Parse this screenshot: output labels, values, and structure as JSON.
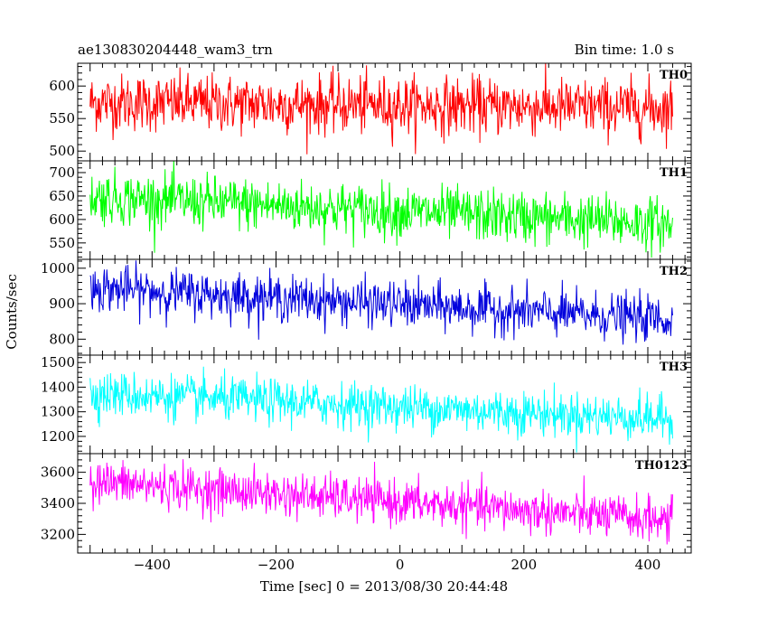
{
  "chart_data": {
    "type": "line",
    "title_left": "ae130830204448_wam3_trn",
    "title_right": "Bin time: 1.0 s",
    "xlabel": "Time [sec] 0 = 2013/08/30 20:44:48",
    "ylabel": "Counts/sec",
    "xlim": [
      -520,
      470
    ],
    "x_range": [
      -500,
      440
    ],
    "x_ticks": [
      -400,
      -200,
      0,
      200,
      400
    ],
    "grid": false,
    "panels": [
      {
        "name": "TH0",
        "color": "#ff0000",
        "ylim": [
          485,
          635
        ],
        "y_ticks": [
          500,
          550,
          600
        ],
        "trend": [
          575,
          566
        ],
        "noise": 22
      },
      {
        "name": "TH1",
        "color": "#00ff00",
        "ylim": [
          515,
          725
        ],
        "y_ticks": [
          550,
          600,
          650,
          700
        ],
        "trend": [
          648,
          590
        ],
        "noise": 28
      },
      {
        "name": "TH2",
        "color": "#0000dd",
        "ylim": [
          755,
          1025
        ],
        "y_ticks": [
          800,
          900,
          1000
        ],
        "trend": [
          945,
          855
        ],
        "noise": 32
      },
      {
        "name": "TH3",
        "color": "#00ffff",
        "ylim": [
          1130,
          1530
        ],
        "y_ticks": [
          1200,
          1300,
          1400,
          1500
        ],
        "trend": [
          1375,
          1270
        ],
        "noise": 45
      },
      {
        "name": "TH0123",
        "color": "#ff00ff",
        "ylim": [
          3080,
          3720
        ],
        "y_ticks": [
          3200,
          3400,
          3600
        ],
        "trend": [
          3540,
          3290
        ],
        "noise": 70
      }
    ]
  }
}
